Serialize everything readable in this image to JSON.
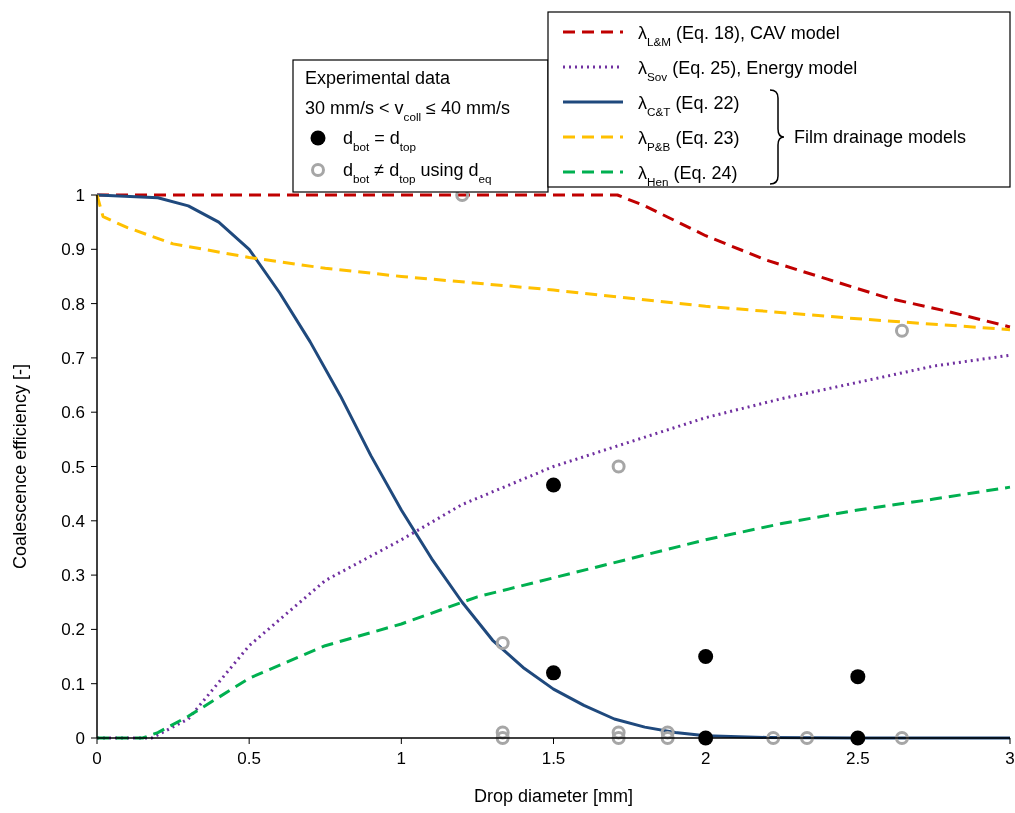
{
  "chart_data": {
    "type": "line",
    "xlabel": "Drop diameter [mm]",
    "ylabel": "Coalescence efficiency [-]",
    "xlim": [
      0,
      3
    ],
    "xticks": [
      0,
      0.5,
      1,
      1.5,
      2,
      2.5,
      3
    ],
    "ylim": [
      0,
      1
    ],
    "yticks": [
      0,
      0.1,
      0.2,
      0.3,
      0.4,
      0.5,
      0.6,
      0.7,
      0.8,
      0.9,
      1
    ],
    "grid": false,
    "legend": "top right",
    "legend_title": "Experimental data",
    "annotations": [
      "30 mm/s < v$_{coll}$ ≤ 40 mm/s",
      "Film drainage models"
    ],
    "series": [
      {
        "name": "λ$_{L&M}$ (Eq. 18), CAV model",
        "line_style": "dashed",
        "color": "#c00000",
        "x": [
          0,
          1.71,
          1.8,
          2.0,
          2.2,
          2.4,
          2.6,
          2.8,
          3.0
        ],
        "values": [
          1,
          1,
          0.98,
          0.925,
          0.88,
          0.845,
          0.81,
          0.785,
          0.757
        ]
      },
      {
        "name": "λ$_{Sov}$ (Eq. 25), Energy model",
        "line_style": "dotted",
        "color": "#7030a0",
        "x": [
          0,
          0.1,
          0.18,
          0.3,
          0.5,
          0.75,
          1.0,
          1.2,
          1.5,
          1.75,
          2.0,
          2.25,
          2.5,
          2.75,
          3.0
        ],
        "values": [
          0,
          0,
          0,
          0.035,
          0.17,
          0.29,
          0.365,
          0.43,
          0.5,
          0.545,
          0.59,
          0.625,
          0.655,
          0.685,
          0.705
        ]
      },
      {
        "name": "λ$_{C&T}$ (Eq. 22)",
        "line_style": "solid",
        "color": "#1f497d",
        "x": [
          0,
          0.2,
          0.3,
          0.4,
          0.5,
          0.6,
          0.7,
          0.8,
          0.9,
          1.0,
          1.1,
          1.2,
          1.3,
          1.4,
          1.5,
          1.6,
          1.7,
          1.8,
          1.9,
          2.0,
          2.2,
          2.5,
          3.0
        ],
        "values": [
          1,
          0.995,
          0.98,
          0.95,
          0.9,
          0.82,
          0.73,
          0.63,
          0.52,
          0.42,
          0.33,
          0.25,
          0.18,
          0.13,
          0.09,
          0.06,
          0.035,
          0.02,
          0.01,
          0.004,
          0.001,
          0,
          0
        ]
      },
      {
        "name": "λ$_{P&B}$ (Eq. 23)",
        "line_style": "dashed",
        "color": "#ffc000",
        "x": [
          0,
          0.02,
          0.1,
          0.25,
          0.5,
          0.75,
          1.0,
          1.5,
          2.0,
          2.5,
          3.0
        ],
        "values": [
          1,
          0.96,
          0.94,
          0.91,
          0.885,
          0.865,
          0.85,
          0.825,
          0.795,
          0.772,
          0.752
        ]
      },
      {
        "name": "λ$_{Hen}$ (Eq. 24)",
        "line_style": "dashed",
        "color": "#00b050",
        "x": [
          0,
          0.15,
          0.2,
          0.3,
          0.5,
          0.75,
          1.0,
          1.25,
          1.5,
          1.75,
          2.0,
          2.25,
          2.5,
          2.75,
          3.0
        ],
        "values": [
          0,
          0,
          0.01,
          0.04,
          0.11,
          0.17,
          0.21,
          0.26,
          0.295,
          0.33,
          0.365,
          0.395,
          0.42,
          0.44,
          0.462
        ]
      },
      {
        "name": "d$_{bot}$ = d$_{top}$",
        "type": "scatter",
        "marker": "circle",
        "color": "#000000",
        "x": [
          1.5,
          1.5,
          2.0,
          2.0,
          2.5,
          2.5
        ],
        "values": [
          0.466,
          0.12,
          0.15,
          0,
          0.113,
          0
        ]
      },
      {
        "name": "d$_{bot}$ ≠ d$_{top}$ using d$_{eq}$",
        "type": "scatter",
        "marker": "circle",
        "color": "#a6a6a6",
        "x": [
          1.2,
          1.714,
          2.645,
          1.333,
          1.333,
          1.333,
          1.714,
          1.714,
          1.875,
          1.875,
          2.222,
          2.333,
          2.645
        ],
        "values": [
          1,
          0.5,
          0.75,
          0.175,
          0.01,
          0,
          0.01,
          0,
          0.01,
          0,
          0,
          0,
          0
        ]
      }
    ]
  }
}
